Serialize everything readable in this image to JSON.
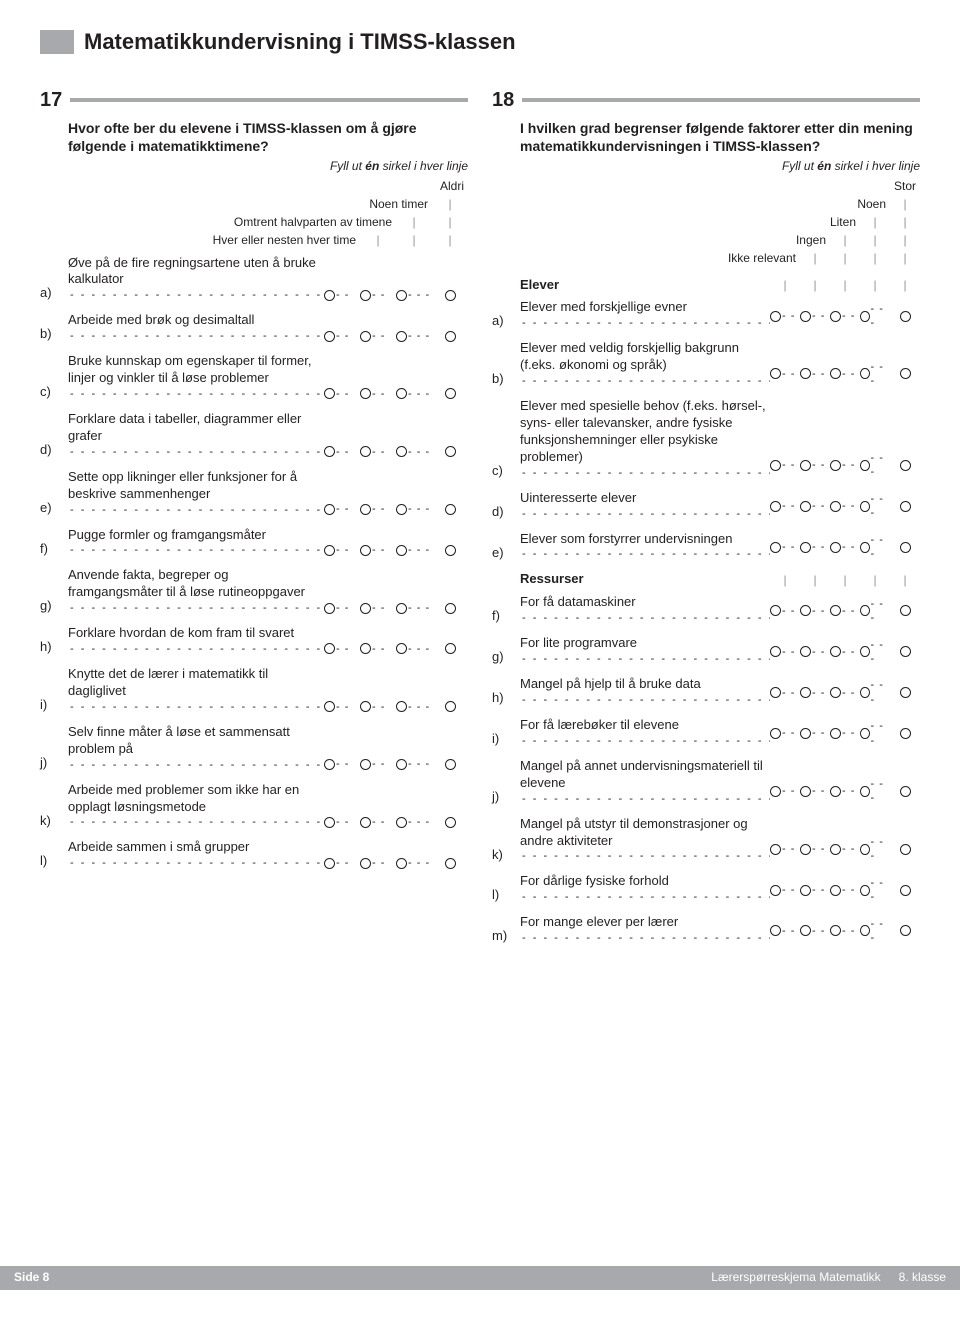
{
  "header": {
    "title": "Matematikkundervisning i TIMSS-klassen"
  },
  "q17": {
    "number": "17",
    "prompt": "Hvor ofte ber du elevene i TIMSS-klassen om å gjøre følgende i matematikktimene?",
    "instruction_pre": "Fyll ut ",
    "instruction_em": "én",
    "instruction_post": " sirkel i hver linje",
    "col_labels": [
      "Hver eller nesten hver time",
      "Omtrent halvparten av timene",
      "Noen timer",
      "Aldri"
    ],
    "items": [
      {
        "letter": "a)",
        "text": "Øve på de fire regningsartene uten å bruke kalkulator"
      },
      {
        "letter": "b)",
        "text": "Arbeide med brøk og desimaltall"
      },
      {
        "letter": "c)",
        "text": "Bruke kunnskap om egenskaper til former, linjer og vinkler til å løse problemer"
      },
      {
        "letter": "d)",
        "text": "Forklare data i tabeller, diagrammer eller grafer"
      },
      {
        "letter": "e)",
        "text": "Sette opp likninger eller funksjoner for å beskrive sammenhenger"
      },
      {
        "letter": "f)",
        "text": "Pugge formler og framgangsmåter"
      },
      {
        "letter": "g)",
        "text": "Anvende fakta, begreper og framgangsmåter til å løse rutineoppgaver"
      },
      {
        "letter": "h)",
        "text": "Forklare hvordan de kom fram til svaret"
      },
      {
        "letter": "i)",
        "text": "Knytte det de lærer i matematikk til dagliglivet"
      },
      {
        "letter": "j)",
        "text": "Selv finne måter å løse et sammensatt problem på"
      },
      {
        "letter": "k)",
        "text": "Arbeide med problemer som ikke har en opplagt løsningsmetode"
      },
      {
        "letter": "l)",
        "text": "Arbeide sammen i små grupper"
      }
    ]
  },
  "q18": {
    "number": "18",
    "prompt": "I hvilken grad begrenser følgende faktorer etter din mening matematikkundervisningen i TIMSS-klassen?",
    "instruction_pre": "Fyll ut ",
    "instruction_em": "én",
    "instruction_post": " sirkel i hver linje",
    "col_labels": [
      "Ikke relevant",
      "Ingen",
      "Liten",
      "Noen",
      "Stor"
    ],
    "group1": "Elever",
    "items1": [
      {
        "letter": "a)",
        "text": "Elever med forskjellige evner"
      },
      {
        "letter": "b)",
        "text": "Elever med veldig forskjellig bakgrunn (f.eks. økonomi og språk)"
      },
      {
        "letter": "c)",
        "text": "Elever med spesielle behov (f.eks. hørsel-, syns- eller talevansker, andre fysiske funksjonshemninger eller psykiske problemer)"
      },
      {
        "letter": "d)",
        "text": "Uinteresserte elever"
      },
      {
        "letter": "e)",
        "text": "Elever som forstyrrer undervisningen"
      }
    ],
    "group2": "Ressurser",
    "items2": [
      {
        "letter": "f)",
        "text": "For få datamaskiner"
      },
      {
        "letter": "g)",
        "text": "For lite programvare"
      },
      {
        "letter": "h)",
        "text": "Mangel på hjelp til å bruke data"
      },
      {
        "letter": "i)",
        "text": "For få lærebøker til elevene"
      },
      {
        "letter": "j)",
        "text": "Mangel på annet undervisningsmateriell til elevene"
      },
      {
        "letter": "k)",
        "text": "Mangel på utstyr til demonstrasjoner og andre aktiviteter"
      },
      {
        "letter": "l)",
        "text": "For dårlige fysiske forhold"
      },
      {
        "letter": "m)",
        "text": "For mange elever per lærer"
      }
    ]
  },
  "footer": {
    "left": "Side 8",
    "right1": "Lærerspørreskjema Matematikk",
    "right2": "8. klasse"
  },
  "dashes": "- - - - - - - - - - - - - - - - - - - - - - - -",
  "bsep": "- -",
  "bsep3": "- - -"
}
